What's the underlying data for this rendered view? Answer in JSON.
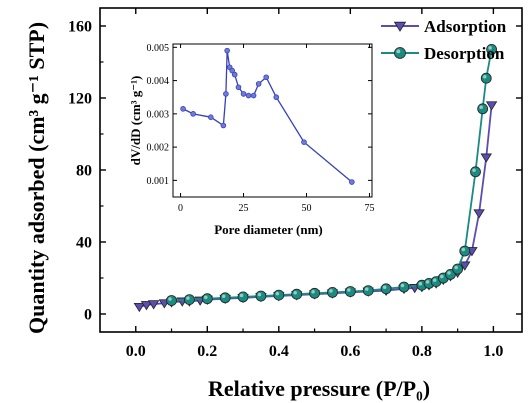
{
  "chart_data": [
    {
      "type": "line",
      "xlabel": "Relative pressure (P/P₀)",
      "ylabel": "Quantity adsorbed (cm³ g⁻¹ STP)",
      "xlim": [
        -0.1,
        1.08
      ],
      "ylim": [
        -10,
        170
      ],
      "x_ticks": [
        0.0,
        0.2,
        0.4,
        0.6,
        0.8,
        1.0
      ],
      "x_tick_labels": [
        "0.0",
        "0.2",
        "0.4",
        "0.6",
        "0.8",
        "1.0"
      ],
      "y_ticks": [
        0,
        40,
        80,
        120,
        160
      ],
      "y_tick_labels": [
        "0",
        "40",
        "80",
        "120",
        "160"
      ],
      "legend_position": "top-right",
      "series": [
        {
          "name": "Adsorption",
          "color": "#5a4fb0",
          "marker": "triangle-down",
          "x": [
            0.01,
            0.03,
            0.05,
            0.08,
            0.1,
            0.13,
            0.15,
            0.18,
            0.2,
            0.25,
            0.3,
            0.35,
            0.4,
            0.45,
            0.5,
            0.55,
            0.6,
            0.65,
            0.7,
            0.75,
            0.78,
            0.8,
            0.82,
            0.84,
            0.86,
            0.88,
            0.9,
            0.92,
            0.94,
            0.96,
            0.98,
            0.995
          ],
          "values": [
            4,
            5,
            5.5,
            6,
            6.5,
            7,
            7,
            7.5,
            8,
            8.5,
            9,
            9.5,
            10,
            10.5,
            11,
            11.5,
            12,
            12.5,
            13,
            14,
            14.5,
            15,
            16,
            17,
            19,
            21,
            23,
            27,
            35,
            56,
            87,
            116
          ]
        },
        {
          "name": "Desorption",
          "color": "#1a8b80",
          "marker": "circle",
          "x": [
            0.1,
            0.15,
            0.2,
            0.25,
            0.3,
            0.35,
            0.4,
            0.45,
            0.5,
            0.55,
            0.6,
            0.65,
            0.7,
            0.75,
            0.8,
            0.82,
            0.84,
            0.86,
            0.88,
            0.9,
            0.92,
            0.95,
            0.97,
            0.98,
            0.995
          ],
          "values": [
            7.5,
            8,
            8.5,
            9,
            9.5,
            10,
            10.5,
            11,
            11.5,
            12,
            12.5,
            13,
            14,
            15,
            16,
            17,
            18,
            20,
            22,
            25,
            35,
            79,
            114,
            131,
            147
          ]
        }
      ]
    },
    {
      "type": "line",
      "xlabel": "Pore diameter (nm)",
      "ylabel": "dV/dD (cm³ g⁻¹)",
      "xlim": [
        -3,
        76
      ],
      "ylim": [
        0.0005,
        0.0051
      ],
      "x_ticks": [
        0,
        25,
        50,
        75
      ],
      "x_tick_labels": [
        "0",
        "25",
        "50",
        "75"
      ],
      "y_ticks": [
        0.001,
        0.002,
        0.003,
        0.004,
        0.005
      ],
      "y_tick_labels": [
        "0.001",
        "0.002",
        "0.003",
        "0.004",
        "0.005"
      ],
      "series": [
        {
          "color": "#3540b8",
          "marker": "circle",
          "x": [
            1,
            5,
            12,
            17,
            18,
            18.5,
            19.5,
            20.5,
            21.5,
            23,
            25,
            27,
            29,
            31,
            34,
            38,
            49,
            68
          ],
          "values": [
            0.00315,
            0.003,
            0.0029,
            0.00265,
            0.0036,
            0.0049,
            0.0044,
            0.0043,
            0.00418,
            0.0038,
            0.0036,
            0.00355,
            0.00355,
            0.0039,
            0.0041,
            0.0035,
            0.00215,
            0.00095
          ]
        }
      ]
    }
  ]
}
